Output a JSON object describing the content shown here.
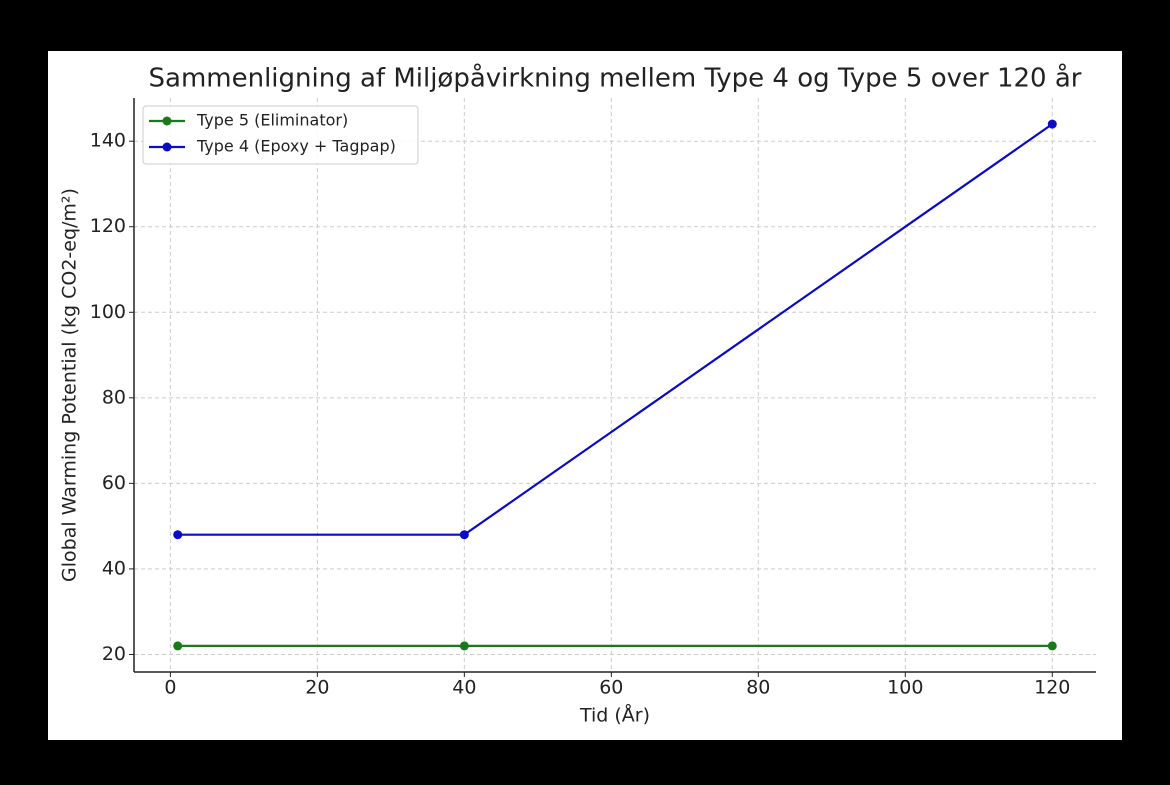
{
  "chart_data": {
    "type": "line",
    "title": "Sammenligning af Miljøpåvirkning mellem Type 4 og Type 5 over 120 år",
    "x_label": "Tid (År)",
    "y_label": "Global Warming Potential (kg CO2-eq/m²)",
    "x": [
      1,
      40,
      120
    ],
    "series": [
      {
        "name": "Type 5 (Eliminator)",
        "color": "#1a7a1a",
        "values": [
          22,
          22,
          22
        ]
      },
      {
        "name": "Type 4 (Epoxy + Tagpap)",
        "color": "#0a0ac8",
        "values": [
          48,
          48,
          144
        ]
      }
    ],
    "xlim": [
      -4.95,
      125.95
    ],
    "xticks": [
      0,
      20,
      40,
      60,
      80,
      100,
      120
    ],
    "ylim": [
      15.9,
      150.1
    ],
    "yticks": [
      20,
      40,
      60,
      80,
      100,
      120,
      140
    ],
    "grid": true,
    "legend": "upper left"
  }
}
